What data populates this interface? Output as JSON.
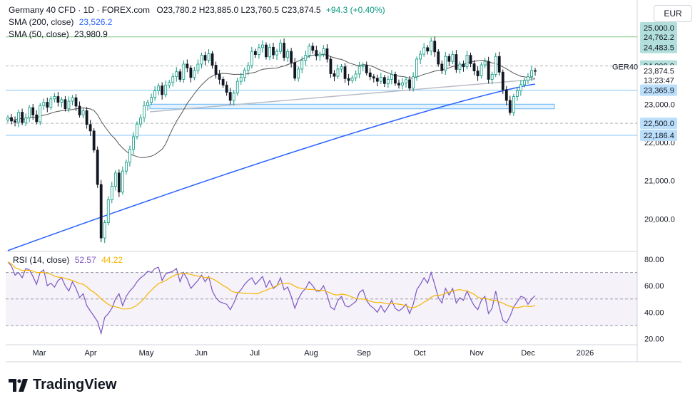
{
  "header": {
    "symbol": "Germany 40 CFD · 1D · FOREX.com",
    "ohlc": "O23,780.2 H23,885.0 L23,760.5 C23,874.5",
    "change": "+94.3 (+0.40%)",
    "sma200_label": "SMA (200, close)",
    "sma200_value": "23,526.2",
    "sma50_label": "SMA (50, close)",
    "sma50_value": "23,980.9"
  },
  "currency": "EUR",
  "ticker_label": "GER40",
  "countdown": "13:23:47",
  "rsi": {
    "label": "RSI (14, close)",
    "value": "52.57",
    "ma_value": "44.22"
  },
  "brand": "TradingView",
  "colors": {
    "up": "#089981",
    "down": "#131722",
    "sma200": "#2962ff",
    "sma50": "#555555",
    "rsi": "#7e57c2",
    "rsi_ma": "#f7b500",
    "level": "#b2dfdb"
  },
  "chart_data": {
    "type": "candlestick",
    "price_axis": [
      "25,000.0",
      "24,000.0",
      "23,000.0",
      "22,000.0",
      "21,000.0",
      "20,000.0"
    ],
    "price_badges": [
      {
        "text": "25,000.0",
        "value": 25000,
        "color": "#b2dfdb"
      },
      {
        "text": "24,762.2",
        "value": 24762.2,
        "color": "#b2dfdb"
      },
      {
        "text": "24,483.5",
        "value": 24483.5,
        "color": "#b2dfdb"
      },
      {
        "text": "24,000.0",
        "value": 24000,
        "color": "#b2dfdb"
      },
      {
        "text": "23,874.5",
        "value": 23874.5,
        "color": "#ffffff"
      },
      {
        "text": "23,365.9",
        "value": 23365.9,
        "color": "#bbdefb"
      },
      {
        "text": "22,500.0",
        "value": 22500,
        "color": "#bbdefb"
      },
      {
        "text": "22,186.4",
        "value": 22186.4,
        "color": "#bbdefb"
      }
    ],
    "horizontal_levels": [
      24762.2,
      24000,
      23365.9,
      22500,
      22186.4
    ],
    "support_zone": [
      22880,
      23000
    ],
    "trendline": {
      "from": {
        "date": "May",
        "value": 22800
      },
      "to": {
        "date": "Dec",
        "value": 23650
      }
    },
    "months": [
      "Mar",
      "Apr",
      "May",
      "Jun",
      "Jul",
      "Aug",
      "Sep",
      "Oct",
      "Nov",
      "Dec",
      "2026"
    ],
    "closes": [
      22650,
      22560,
      22530,
      22790,
      22520,
      22640,
      22910,
      22720,
      22540,
      22960,
      23050,
      22920,
      23140,
      23200,
      23050,
      23120,
      22880,
      23080,
      23170,
      22950,
      22720,
      22830,
      22470,
      22300,
      21800,
      20900,
      19500,
      19900,
      20500,
      20850,
      21200,
      20700,
      21250,
      21480,
      21820,
      22150,
      22480,
      22640,
      22960,
      23050,
      23180,
      23350,
      23480,
      23250,
      23500,
      23570,
      23720,
      23850,
      23650,
      24050,
      23950,
      23700,
      23880,
      24050,
      24280,
      24150,
      24320,
      24020,
      23780,
      23650,
      23500,
      23310,
      23100,
      23290,
      23600,
      23700,
      23890,
      24010,
      24380,
      24300,
      24480,
      24550,
      24240,
      24490,
      24290,
      24380,
      24600,
      24220,
      24380,
      24090,
      23680,
      23920,
      24150,
      24280,
      24520,
      24410,
      24260,
      24310,
      24450,
      24180,
      23800,
      23730,
      23920,
      23980,
      23670,
      23620,
      23690,
      23790,
      23990,
      24020,
      23820,
      23720,
      23680,
      23600,
      23700,
      23540,
      23650,
      23780,
      23550,
      23500,
      23560,
      23640,
      23420,
      23720,
      24180,
      24310,
      24480,
      24390,
      24650,
      24370,
      24050,
      23880,
      24250,
      24120,
      24300,
      23910,
      24050,
      23980,
      24280,
      24060,
      23870,
      23740,
      24030,
      24120,
      23650,
      23780,
      24250,
      23840,
      23380,
      23100,
      22780,
      23200,
      23350,
      23510,
      23620,
      23720,
      23880,
      23874.5
    ],
    "sma200_start": 19170,
    "sma200_end": 23526.2,
    "sma50_end": 23980.9,
    "rsi_axis": [
      "80.00",
      "60.00",
      "40.00",
      "20.00"
    ],
    "rsi_bands": [
      70,
      50,
      30
    ],
    "rsi_values": [
      78,
      75,
      68,
      70,
      66,
      73,
      72,
      67,
      61,
      70,
      72,
      60,
      62,
      59,
      64,
      66,
      60,
      56,
      63,
      58,
      51,
      54,
      45,
      41,
      37,
      33,
      24,
      36,
      39,
      43,
      50,
      54,
      45,
      52,
      56,
      59,
      63,
      66,
      68,
      71,
      70,
      73,
      74,
      64,
      69,
      70,
      71,
      73,
      63,
      70,
      65,
      58,
      61,
      64,
      68,
      63,
      67,
      56,
      51,
      48,
      47,
      46,
      42,
      47,
      54,
      57,
      61,
      64,
      66,
      61,
      64,
      67,
      59,
      64,
      58,
      60,
      66,
      57,
      59,
      52,
      43,
      50,
      55,
      58,
      63,
      60,
      56,
      56,
      60,
      53,
      44,
      42,
      49,
      52,
      45,
      44,
      46,
      48,
      55,
      57,
      49,
      45,
      43,
      40,
      45,
      40,
      44,
      49,
      43,
      41,
      43,
      46,
      39,
      46,
      57,
      61,
      66,
      62,
      70,
      61,
      51,
      47,
      58,
      53,
      58,
      47,
      51,
      49,
      56,
      50,
      45,
      42,
      49,
      52,
      39,
      43,
      56,
      44,
      34,
      32,
      37,
      44,
      48,
      52,
      51,
      46,
      50,
      52.57
    ]
  }
}
